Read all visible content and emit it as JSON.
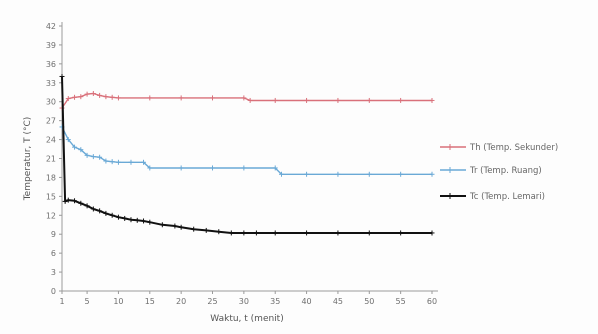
{
  "chart_data": {
    "type": "line",
    "title": "",
    "xlabel": "Waktu, t (menit)",
    "ylabel": "Temperatur, T (°C)",
    "xlim": [
      1,
      60
    ],
    "ylim": [
      0,
      42
    ],
    "x_ticks": [
      "1",
      "5",
      "10",
      "15",
      "20",
      "25",
      "30",
      "35",
      "40",
      "45",
      "50",
      "55",
      "60"
    ],
    "y_ticks": [
      "0",
      "3",
      "6",
      "9",
      "12",
      "15",
      "18",
      "21",
      "24",
      "27",
      "30",
      "33",
      "36",
      "39",
      "42"
    ],
    "grid": false,
    "legend_position": "right",
    "series": [
      {
        "name": "Th (Temp. Sekunder)",
        "color": "#d9707a",
        "marker": "+",
        "x": [
          1,
          2,
          3,
          4,
          5,
          6,
          7,
          8,
          9,
          10,
          15,
          20,
          25,
          30,
          31,
          35,
          40,
          45,
          50,
          55,
          60
        ],
        "y": [
          29,
          30.5,
          30.7,
          30.8,
          31.2,
          31.3,
          31,
          30.8,
          30.7,
          30.6,
          30.6,
          30.6,
          30.6,
          30.6,
          30.2,
          30.2,
          30.2,
          30.2,
          30.2,
          30.2,
          30.2
        ]
      },
      {
        "name": "Tr (Temp. Ruang)",
        "color": "#6aa9d6",
        "marker": "+",
        "x": [
          1,
          2,
          3,
          4,
          5,
          6,
          7,
          8,
          9,
          10,
          12,
          14,
          15,
          20,
          25,
          30,
          35,
          36,
          40,
          45,
          50,
          55,
          60
        ],
        "y": [
          26,
          24,
          22.8,
          22.4,
          21.5,
          21.3,
          21.2,
          20.6,
          20.5,
          20.4,
          20.4,
          20.4,
          19.5,
          19.5,
          19.5,
          19.5,
          19.5,
          18.5,
          18.5,
          18.5,
          18.5,
          18.5,
          18.5
        ]
      },
      {
        "name": "Tc (Temp. Lemari)",
        "color": "#111111",
        "marker": "+",
        "x": [
          1,
          1.5,
          2,
          3,
          4,
          5,
          6,
          7,
          8,
          9,
          10,
          11,
          12,
          13,
          14,
          15,
          17,
          19,
          20,
          22,
          24,
          26,
          28,
          30,
          32,
          35,
          40,
          45,
          50,
          55,
          60
        ],
        "y": [
          34,
          14.2,
          14.4,
          14.3,
          13.9,
          13.5,
          13.0,
          12.7,
          12.3,
          12.0,
          11.7,
          11.5,
          11.3,
          11.2,
          11.1,
          10.9,
          10.5,
          10.3,
          10.1,
          9.8,
          9.6,
          9.4,
          9.2,
          9.2,
          9.2,
          9.2,
          9.2,
          9.2,
          9.2,
          9.2,
          9.2
        ]
      }
    ]
  }
}
